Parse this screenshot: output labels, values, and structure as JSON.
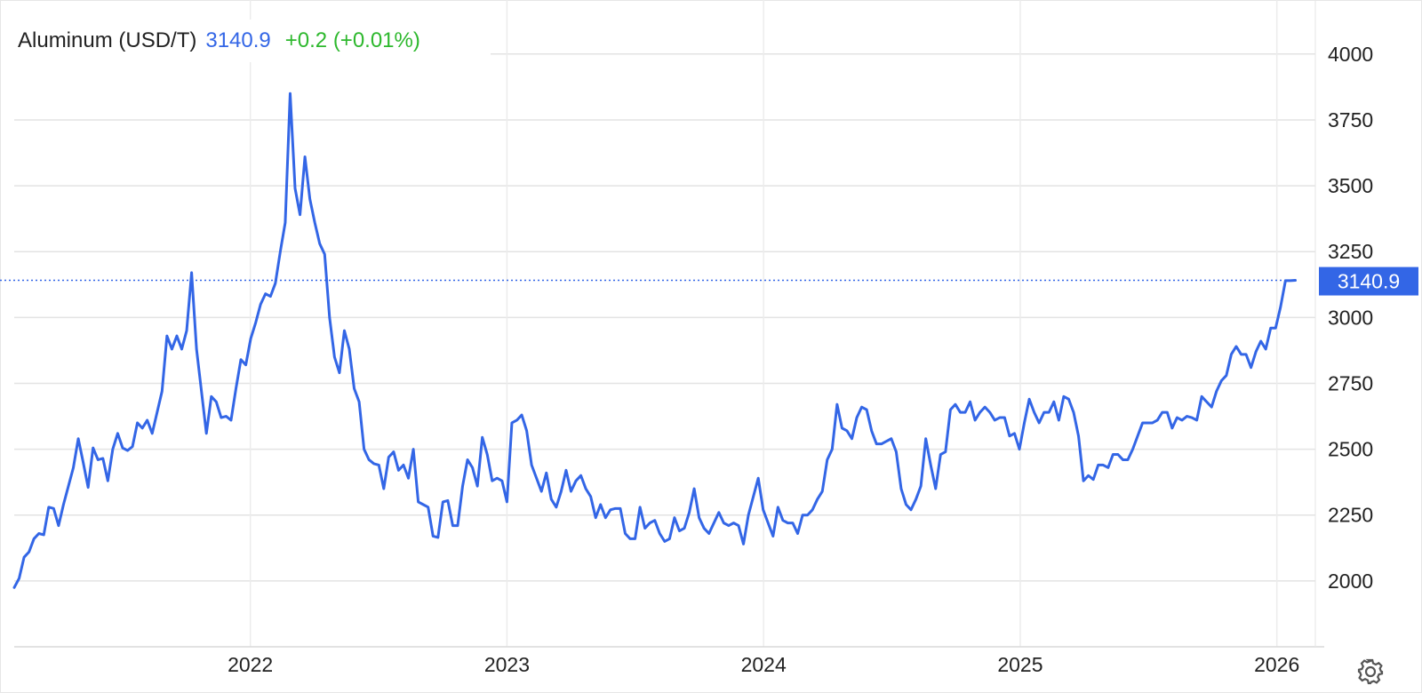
{
  "chart_data": {
    "type": "line",
    "title": "Aluminum (USD/T)",
    "price": "3140.9",
    "change": "+0.2 (+0.01%)",
    "price_color": "#3366e6",
    "change_color": "#2db82d",
    "grid": true,
    "xlim": [
      2021.08,
      2026.15
    ],
    "xticks": [
      2022,
      2023,
      2024,
      2025,
      2026
    ],
    "ylim": [
      1750,
      4200
    ],
    "yticks": [
      2000,
      2250,
      2500,
      2750,
      3000,
      3250,
      3500,
      3750,
      4000
    ],
    "x": [
      2021.08,
      2021.0992,
      2021.1184,
      2021.1376,
      2021.1568,
      2021.176,
      2021.1952,
      2021.2144,
      2021.2336,
      2021.2528,
      2021.272,
      2021.2912,
      2021.3104,
      2021.3296,
      2021.3488,
      2021.368,
      2021.3872,
      2021.4064,
      2021.4256,
      2021.4448,
      2021.464,
      2021.4832,
      2021.5024,
      2021.5216,
      2021.5408,
      2021.56,
      2021.5792,
      2021.5984,
      2021.6176,
      2021.6368,
      2021.656,
      2021.6752,
      2021.6944,
      2021.7136,
      2021.7328,
      2021.752,
      2021.7712,
      2021.7904,
      2021.8096,
      2021.8288,
      2021.848,
      2021.8672,
      2021.8864,
      2021.9056,
      2021.9248,
      2021.944,
      2021.9632,
      2021.9824,
      2022.0016,
      2022.0208,
      2022.04,
      2022.0592,
      2022.0784,
      2022.0976,
      2022.1168,
      2022.136,
      2022.1552,
      2022.1744,
      2022.1936,
      2022.2128,
      2022.232,
      2022.2512,
      2022.2704,
      2022.2896,
      2022.3088,
      2022.328,
      2022.3472,
      2022.3664,
      2022.3856,
      2022.4048,
      2022.424,
      2022.4432,
      2022.4624,
      2022.4816,
      2022.5008,
      2022.52,
      2022.5392,
      2022.5584,
      2022.5776,
      2022.5968,
      2022.616,
      2022.6352,
      2022.6544,
      2022.6736,
      2022.6928,
      2022.712,
      2022.7312,
      2022.7504,
      2022.7696,
      2022.7888,
      2022.808,
      2022.8272,
      2022.8464,
      2022.8656,
      2022.8848,
      2022.904,
      2022.9232,
      2022.9424,
      2022.9616,
      2022.9808,
      2023.0,
      2023.0192,
      2023.0384,
      2023.0576,
      2023.0768,
      2023.096,
      2023.1152,
      2023.1344,
      2023.1536,
      2023.1728,
      2023.192,
      2023.2112,
      2023.2304,
      2023.2496,
      2023.2688,
      2023.288,
      2023.3072,
      2023.3264,
      2023.3456,
      2023.3648,
      2023.384,
      2023.4032,
      2023.4224,
      2023.4416,
      2023.4608,
      2023.48,
      2023.4992,
      2023.5184,
      2023.5376,
      2023.5568,
      2023.576,
      2023.5952,
      2023.6144,
      2023.6336,
      2023.6528,
      2023.672,
      2023.6912,
      2023.7104,
      2023.7296,
      2023.7488,
      2023.768,
      2023.7872,
      2023.8064,
      2023.8256,
      2023.8448,
      2023.864,
      2023.8832,
      2023.9024,
      2023.9216,
      2023.9408,
      2023.96,
      2023.9792,
      2023.9984,
      2024.0176,
      2024.0368,
      2024.056,
      2024.0752,
      2024.0944,
      2024.1136,
      2024.1328,
      2024.152,
      2024.1712,
      2024.1904,
      2024.2096,
      2024.2288,
      2024.248,
      2024.2672,
      2024.2864,
      2024.3056,
      2024.3248,
      2024.344,
      2024.3632,
      2024.3824,
      2024.4016,
      2024.4208,
      2024.44,
      2024.4592,
      2024.4784,
      2024.4976,
      2024.5168,
      2024.536,
      2024.5552,
      2024.5744,
      2024.5936,
      2024.6128,
      2024.632,
      2024.6512,
      2024.6704,
      2024.6896,
      2024.7088,
      2024.728,
      2024.7472,
      2024.7664,
      2024.7856,
      2024.8048,
      2024.824,
      2024.8432,
      2024.8624,
      2024.8816,
      2024.9008,
      2024.92,
      2024.9392,
      2024.9584,
      2024.9776,
      2024.9968,
      2025.016,
      2025.0352,
      2025.0544,
      2025.0736,
      2025.0928,
      2025.112,
      2025.1312,
      2025.1504,
      2025.1696,
      2025.1888,
      2025.208,
      2025.2272,
      2025.2464,
      2025.2656,
      2025.2848,
      2025.304,
      2025.3232,
      2025.3424,
      2025.3616,
      2025.3808,
      2025.4,
      2025.4192,
      2025.4384,
      2025.4576,
      2025.4768,
      2025.496,
      2025.5152,
      2025.5344,
      2025.5536,
      2025.5728,
      2025.592,
      2025.6112,
      2025.6304,
      2025.6496,
      2025.6688,
      2025.688,
      2025.7072,
      2025.7264,
      2025.7456,
      2025.7648,
      2025.784,
      2025.8032,
      2025.8224,
      2025.8416,
      2025.8608,
      2025.88,
      2025.8992,
      2025.9184,
      2025.9376,
      2025.9568,
      2025.976,
      2025.9952,
      2026.0144,
      2026.0336,
      2026.0528,
      2026.072
    ],
    "series": [
      {
        "color": "#3366e6",
        "values": [
          1975,
          2010,
          2090,
          2110,
          2160,
          2180,
          2175,
          2280,
          2275,
          2210,
          2290,
          2360,
          2430,
          2540,
          2450,
          2355,
          2505,
          2460,
          2465,
          2380,
          2500,
          2560,
          2505,
          2495,
          2510,
          2600,
          2580,
          2610,
          2560,
          2640,
          2720,
          2930,
          2880,
          2930,
          2880,
          2950,
          3170,
          2880,
          2720,
          2560,
          2700,
          2680,
          2620,
          2625,
          2610,
          2730,
          2840,
          2820,
          2920,
          2980,
          3050,
          3090,
          3080,
          3130,
          3250,
          3360,
          3850,
          3490,
          3390,
          3610,
          3450,
          3360,
          3280,
          3240,
          3000,
          2850,
          2790,
          2950,
          2880,
          2730,
          2680,
          2500,
          2460,
          2445,
          2440,
          2350,
          2470,
          2490,
          2420,
          2440,
          2390,
          2500,
          2300,
          2290,
          2280,
          2170,
          2165,
          2300,
          2305,
          2210,
          2210,
          2360,
          2460,
          2430,
          2360,
          2545,
          2480,
          2380,
          2390,
          2380,
          2300,
          2600,
          2610,
          2630,
          2570,
          2440,
          2390,
          2340,
          2410,
          2310,
          2280,
          2340,
          2420,
          2340,
          2380,
          2400,
          2350,
          2320,
          2240,
          2290,
          2240,
          2270,
          2275,
          2275,
          2180,
          2160,
          2160,
          2280,
          2200,
          2220,
          2230,
          2180,
          2150,
          2160,
          2240,
          2190,
          2200,
          2260,
          2350,
          2240,
          2200,
          2180,
          2220,
          2260,
          2220,
          2210,
          2220,
          2210,
          2140,
          2250,
          2320,
          2390,
          2270,
          2220,
          2170,
          2280,
          2230,
          2220,
          2220,
          2180,
          2250,
          2250,
          2270,
          2310,
          2340,
          2460,
          2500,
          2670,
          2580,
          2570,
          2540,
          2620,
          2660,
          2650,
          2570,
          2520,
          2520,
          2530,
          2540,
          2490,
          2350,
          2290,
          2270,
          2310,
          2360,
          2540,
          2440,
          2350,
          2480,
          2490,
          2650,
          2670,
          2640,
          2640,
          2680,
          2610,
          2640,
          2660,
          2640,
          2610,
          2620,
          2620,
          2550,
          2560,
          2500,
          2600,
          2690,
          2640,
          2600,
          2640,
          2640,
          2680,
          2610,
          2700,
          2690,
          2640,
          2550,
          2380,
          2400,
          2385,
          2440,
          2440,
          2430,
          2480,
          2480,
          2460,
          2460,
          2500,
          2550,
          2600,
          2600,
          2600,
          2610,
          2640,
          2640,
          2580,
          2620,
          2610,
          2625,
          2620,
          2610,
          2700,
          2680,
          2660,
          2720,
          2760,
          2780,
          2860,
          2890,
          2860,
          2860,
          2810,
          2870,
          2910,
          2880,
          2960,
          2960,
          3040,
          3140,
          3140,
          3140.9
        ]
      }
    ]
  }
}
